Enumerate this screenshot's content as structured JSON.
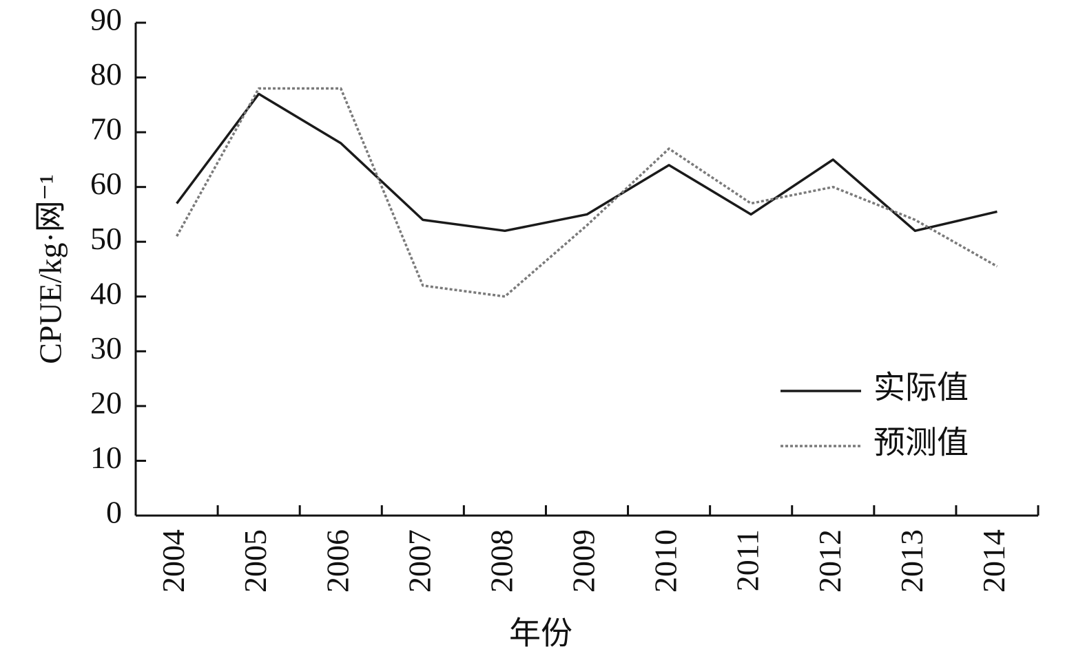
{
  "chart_data": {
    "type": "line",
    "xlabel": "年份",
    "ylabel": "CPUE/kg·网⁻¹",
    "categories": [
      "2004",
      "2005",
      "2006",
      "2007",
      "2008",
      "2009",
      "2010",
      "2011",
      "2012",
      "2013",
      "2014"
    ],
    "series": [
      {
        "name": "实际值",
        "color": "#1a1a1a",
        "linestyle": "solid",
        "values": [
          57,
          77,
          68,
          54,
          52,
          55,
          64,
          55,
          65,
          52,
          55.5
        ]
      },
      {
        "name": "预测值",
        "color": "#7a7a7a",
        "linestyle": "dotted",
        "values": [
          51,
          78,
          78,
          42,
          40,
          53,
          67,
          57,
          60,
          54,
          45.5
        ]
      }
    ],
    "ylim": [
      0,
      90
    ],
    "yticks": [
      0,
      10,
      20,
      30,
      40,
      50,
      60,
      70,
      80,
      90
    ],
    "grid": false,
    "legend": "lower right"
  }
}
